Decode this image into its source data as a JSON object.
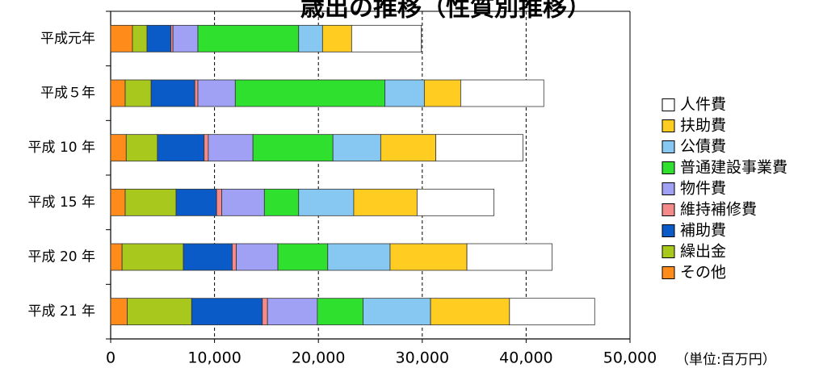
{
  "chart_data": {
    "type": "bar",
    "orientation": "horizontal",
    "stacked": true,
    "title": "歳出の推移（性質別推移）",
    "unit": "（単位:百万円）",
    "categories": [
      "平成元年",
      "平成５年",
      "平成 10 年",
      "平成 15 年",
      "平成 20 年",
      "平成 21 年"
    ],
    "xlim": [
      0,
      50000
    ],
    "xticks": [
      0,
      10000,
      20000,
      30000,
      40000,
      50000
    ],
    "xtick_labels": [
      "0",
      "10,000",
      "20,000",
      "30,000",
      "40,000",
      "50,000"
    ],
    "grid": "vertical-dashed",
    "legend_position": "right",
    "series": [
      {
        "name": "その他",
        "color": "#FF8C1A",
        "values": [
          2100,
          1400,
          1500,
          1400,
          1100,
          1600
        ]
      },
      {
        "name": "繰出金",
        "color": "#A8C81E",
        "values": [
          1400,
          2500,
          3000,
          4900,
          5900,
          6200
        ]
      },
      {
        "name": "補助費",
        "color": "#0A5AC8",
        "values": [
          2300,
          4200,
          4500,
          3900,
          4700,
          6800
        ]
      },
      {
        "name": "維持補修費",
        "color": "#F58A8A",
        "values": [
          200,
          300,
          400,
          500,
          400,
          500
        ]
      },
      {
        "name": "物件費",
        "color": "#A0A0F5",
        "values": [
          2400,
          3600,
          4300,
          4100,
          4000,
          4800
        ]
      },
      {
        "name": "普通建設事業費",
        "color": "#2FE02F",
        "values": [
          9700,
          14400,
          7700,
          3300,
          4800,
          4400
        ]
      },
      {
        "name": "公債費",
        "color": "#86C8F2",
        "values": [
          2300,
          3800,
          4600,
          5300,
          6000,
          6500
        ]
      },
      {
        "name": "扶助費",
        "color": "#FFCC22",
        "values": [
          2800,
          3500,
          5300,
          6100,
          7400,
          7600
        ]
      },
      {
        "name": "人件費",
        "color": "#FFFFFF",
        "values": [
          6700,
          8000,
          8400,
          7400,
          8200,
          8200
        ]
      }
    ]
  }
}
